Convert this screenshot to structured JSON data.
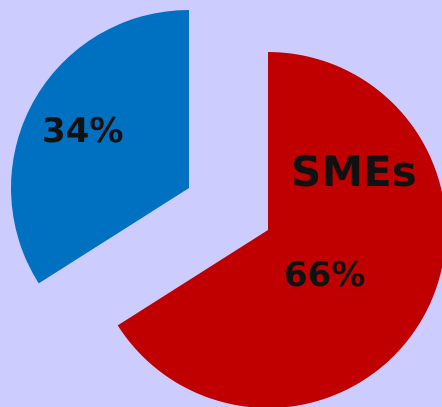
{
  "chart_data": {
    "type": "pie",
    "exploded": true,
    "background": "#ccccff",
    "slices": [
      {
        "name": "",
        "value": 34,
        "label": "34%",
        "color": "#0070c0"
      },
      {
        "name": "SMEs",
        "value": 66,
        "label": "66%",
        "color": "#c00000"
      }
    ],
    "legend": "none"
  }
}
